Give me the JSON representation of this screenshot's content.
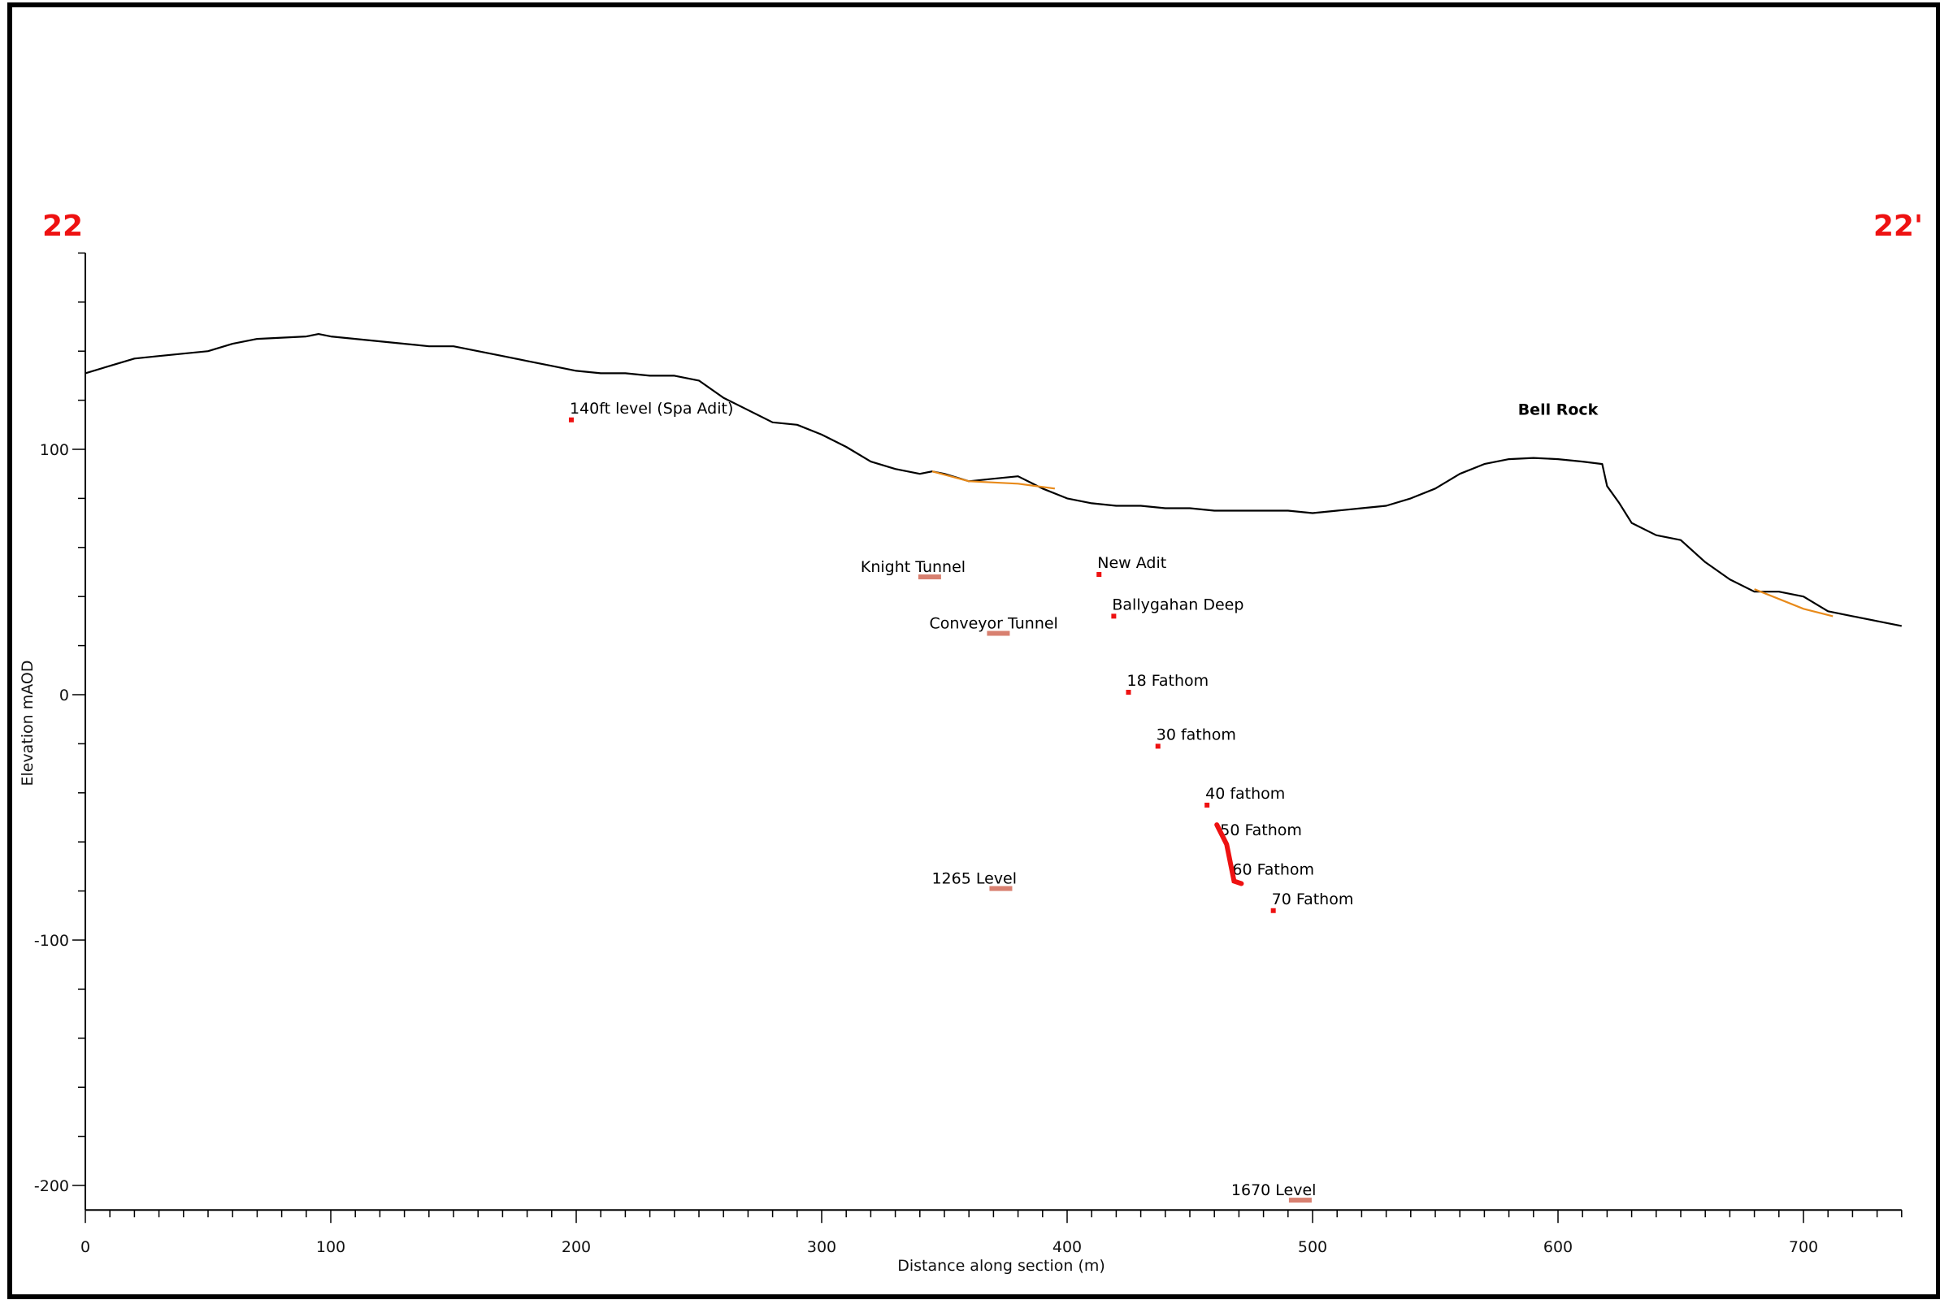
{
  "section": {
    "start_label": "22",
    "end_label": "22'"
  },
  "axes": {
    "x_label": "Distance along section (m)",
    "y_label": "Elevation mAOD",
    "xlim": [
      0,
      740
    ],
    "ylim": [
      -210,
      180
    ],
    "x_ticks": [
      {
        "value": 0,
        "label": "0"
      },
      {
        "value": 100,
        "label": "100"
      },
      {
        "value": 200,
        "label": "200"
      },
      {
        "value": 300,
        "label": "300"
      },
      {
        "value": 400,
        "label": "400"
      },
      {
        "value": 500,
        "label": "500"
      },
      {
        "value": 600,
        "label": "600"
      },
      {
        "value": 700,
        "label": "700"
      }
    ],
    "y_ticks": [
      {
        "value": 100,
        "label": "100"
      },
      {
        "value": 0,
        "label": "0"
      },
      {
        "value": -100,
        "label": "-100"
      },
      {
        "value": -200,
        "label": "-200"
      }
    ]
  },
  "chart_data": {
    "type": "line",
    "xlabel": "Distance along section (m)",
    "ylabel": "Elevation mAOD",
    "xlim": [
      0,
      740
    ],
    "ylim": [
      -210,
      180
    ],
    "grid": false,
    "legend": "none",
    "colors": {
      "ground": "#000000",
      "overburden": "#e88a1a",
      "workings": "#ee1111",
      "tunnel": "#d88070"
    },
    "series": [
      {
        "role": "ground",
        "x": [
          0,
          10,
          20,
          30,
          40,
          50,
          60,
          70,
          80,
          90,
          95,
          100,
          110,
          120,
          130,
          140,
          150,
          160,
          170,
          180,
          190,
          200,
          210,
          220,
          230,
          240,
          250,
          260,
          270,
          280,
          290,
          300,
          310,
          320,
          330,
          340,
          345,
          350,
          360,
          370,
          380,
          390,
          400,
          410,
          420,
          430,
          440,
          450,
          460,
          470,
          480,
          490,
          500,
          510,
          520,
          530,
          540,
          550,
          560,
          570,
          580,
          590,
          600,
          610,
          618,
          620,
          625,
          630,
          640,
          650,
          660,
          670,
          680,
          690,
          700,
          710,
          720,
          730,
          740
        ],
        "y": [
          131,
          134,
          137,
          138,
          139,
          140,
          143,
          145,
          145.5,
          146,
          147,
          146,
          145,
          144,
          143,
          142,
          142,
          140,
          138,
          136,
          134,
          132,
          131,
          131,
          130,
          130,
          128,
          121,
          116,
          111,
          110,
          106,
          101,
          95,
          92,
          90,
          91,
          90,
          87,
          88,
          89,
          84,
          80,
          78,
          77,
          77,
          76,
          76,
          75,
          75,
          75,
          75,
          74,
          75,
          76,
          77,
          80,
          84,
          90,
          94,
          96,
          96.5,
          96,
          95,
          94,
          85,
          78,
          70,
          65,
          63,
          54,
          47,
          42,
          42,
          40,
          34,
          32,
          30,
          28
        ],
        "orange_segments": [
          {
            "x": [
              345,
              360,
              370,
              380,
              395
            ],
            "y": [
              91,
              87,
              86.5,
              86,
              84
            ]
          },
          {
            "x": [
              680,
              690,
              700,
              712
            ],
            "y": [
              43,
              39,
              35,
              32
            ]
          }
        ]
      }
    ],
    "features": [
      {
        "name": "140ft level (Spa Adit)",
        "x": 198,
        "y": 112,
        "kind": "point"
      },
      {
        "name": "Knight Tunnel",
        "x": 344,
        "y": 48,
        "kind": "tunnel"
      },
      {
        "name": "Conveyor Tunnel",
        "x": 372,
        "y": 25,
        "kind": "tunnel"
      },
      {
        "name": "New Adit",
        "x": 413,
        "y": 49,
        "kind": "point"
      },
      {
        "name": "Ballygahan Deep",
        "x": 419,
        "y": 32,
        "kind": "point"
      },
      {
        "name": "18 Fathom",
        "x": 425,
        "y": 1,
        "kind": "point"
      },
      {
        "name": "30 fathom",
        "x": 437,
        "y": -21,
        "kind": "point"
      },
      {
        "name": "40 fathom",
        "x": 457,
        "y": -45,
        "kind": "point"
      },
      {
        "name": "50 Fathom",
        "x": 463,
        "y": -60,
        "kind": "shaft"
      },
      {
        "name": "60 Fathom",
        "x": 468,
        "y": -76,
        "kind": "shaft"
      },
      {
        "name": "70 Fathom",
        "x": 484,
        "y": -88,
        "kind": "point"
      },
      {
        "name": "1265 Level",
        "x": 373,
        "y": -79,
        "kind": "tunnel"
      },
      {
        "name": "1670 Level",
        "x": 495,
        "y": -206,
        "kind": "tunnel"
      }
    ],
    "annotations": [
      {
        "text": "Bell Rock",
        "x": 600,
        "y": 114,
        "bold": true
      }
    ],
    "shaft": {
      "x": [
        461,
        465,
        468,
        471
      ],
      "y": [
        -53,
        -61,
        -76,
        -77
      ]
    }
  }
}
